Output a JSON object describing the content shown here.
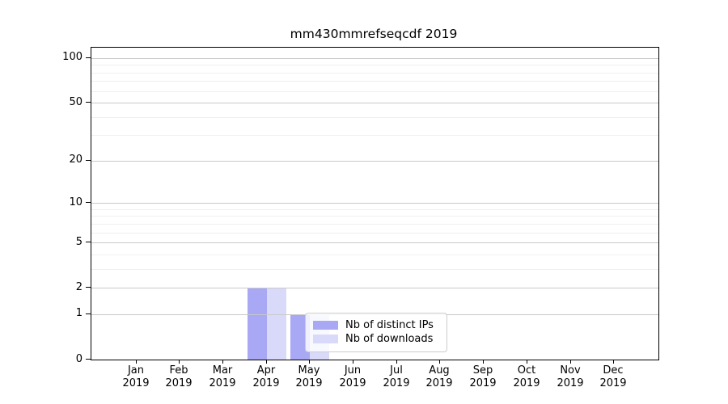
{
  "chart_data": {
    "type": "bar",
    "title": "mm430mmrefseqcdf 2019",
    "categories": [
      "Jan",
      "Feb",
      "Mar",
      "Apr",
      "May",
      "Jun",
      "Jul",
      "Aug",
      "Sep",
      "Oct",
      "Nov",
      "Dec"
    ],
    "x_tick_year": "2019",
    "series": [
      {
        "name": "Nb of distinct IPs",
        "color": "#a8a8f4",
        "values": [
          0,
          0,
          0,
          2,
          1,
          0,
          0,
          0,
          0,
          0,
          0,
          0
        ]
      },
      {
        "name": "Nb of downloads",
        "color": "#d9daf9",
        "values": [
          0,
          0,
          0,
          2,
          1,
          0,
          0,
          0,
          0,
          0,
          0,
          0
        ]
      }
    ],
    "y_axis": {
      "scale": "log1p",
      "major_ticks": [
        0,
        1,
        2,
        5,
        10,
        20,
        50,
        100
      ],
      "minor_gridlines": [
        3,
        4,
        6,
        7,
        8,
        9,
        30,
        40,
        60,
        70,
        80,
        90
      ],
      "ylim": [
        0,
        117
      ]
    },
    "xlabel": "",
    "ylabel": "",
    "grid": "horizontal",
    "legend_position": "lower-center-inside"
  },
  "colors": {
    "grid_major": "#c9c9c9",
    "grid_minor": "#f0f0f0",
    "spine": "#000000",
    "legend_border": "#cccccc",
    "background": "#ffffff"
  }
}
